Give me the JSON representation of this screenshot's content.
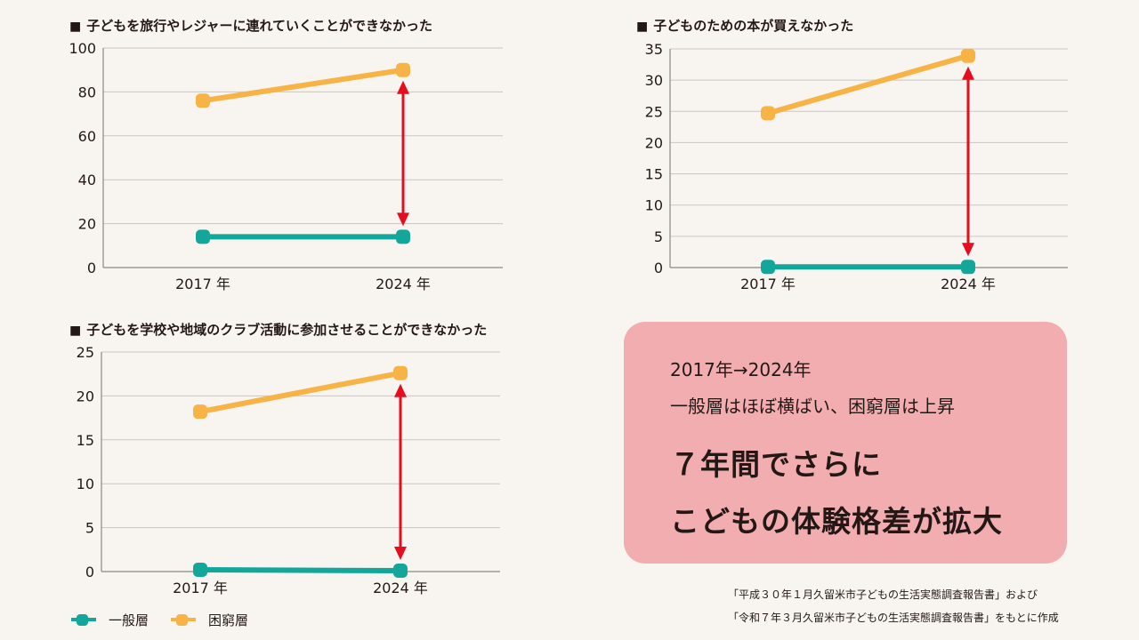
{
  "colors": {
    "general": "#13a79b",
    "poverty": "#f7b345",
    "arrow": "#e60d1e",
    "grid": "#c9c6c3",
    "axis": "#8a8784",
    "box": "#f2adb1"
  },
  "charts": [
    {
      "title": "子どもを旅行やレジャーに連れていくことができなかった"
    },
    {
      "title": "子どものための本が買えなかった"
    },
    {
      "title": "子どもを学校や地域のクラブ活動に参加させることができなかった"
    }
  ],
  "chart_data": [
    {
      "type": "line",
      "title": "子どもを旅行やレジャーに連れていくことができなかった",
      "categories": [
        "2017 年",
        "2024 年"
      ],
      "ylim": [
        0,
        100
      ],
      "yticks": [
        "0",
        "20",
        "40",
        "60",
        "80",
        "100"
      ],
      "grid": true,
      "series": [
        {
          "name": "一般層",
          "values": [
            14,
            14
          ]
        },
        {
          "name": "困窮層",
          "values": [
            76,
            90
          ]
        }
      ],
      "annotation": "double-headed arrow between series at 2024"
    },
    {
      "type": "line",
      "title": "子どものための本が買えなかった",
      "categories": [
        "2017 年",
        "2024 年"
      ],
      "ylim": [
        0,
        35
      ],
      "yticks": [
        "0",
        "5",
        "10",
        "15",
        "20",
        "25",
        "30",
        "35"
      ],
      "grid": true,
      "series": [
        {
          "name": "一般層",
          "values": [
            0.1,
            0.1
          ]
        },
        {
          "name": "困窮層",
          "values": [
            24.7,
            33.9
          ]
        }
      ],
      "annotation": "double-headed arrow between series at 2024"
    },
    {
      "type": "line",
      "title": "子どもを学校や地域のクラブ活動に参加させることができなかった",
      "categories": [
        "2017 年",
        "2024 年"
      ],
      "ylim": [
        0,
        25
      ],
      "yticks": [
        "0",
        "5",
        "10",
        "15",
        "20",
        "25"
      ],
      "grid": true,
      "series": [
        {
          "name": "一般層",
          "values": [
            0.2,
            0.1
          ]
        },
        {
          "name": "困窮層",
          "values": [
            18.2,
            22.6
          ]
        }
      ],
      "annotation": "double-headed arrow between series at 2024"
    }
  ],
  "summary": {
    "line1": "2017年→2024年",
    "line2": "一般層はほぼ横ばい、困窮層は上昇",
    "headline1": "７年間でさらに",
    "headline2": "こどもの体験格差が拡大"
  },
  "source": {
    "line1": "「平成３０年１月久留米市子どもの生活実態調査報告書」および",
    "line2": "「令和７年３月久留米市子どもの生活実態調査報告書」をもとに作成"
  },
  "legend": [
    {
      "label": "一般層",
      "color": "#13a79b"
    },
    {
      "label": "困窮層",
      "color": "#f7b345"
    }
  ]
}
